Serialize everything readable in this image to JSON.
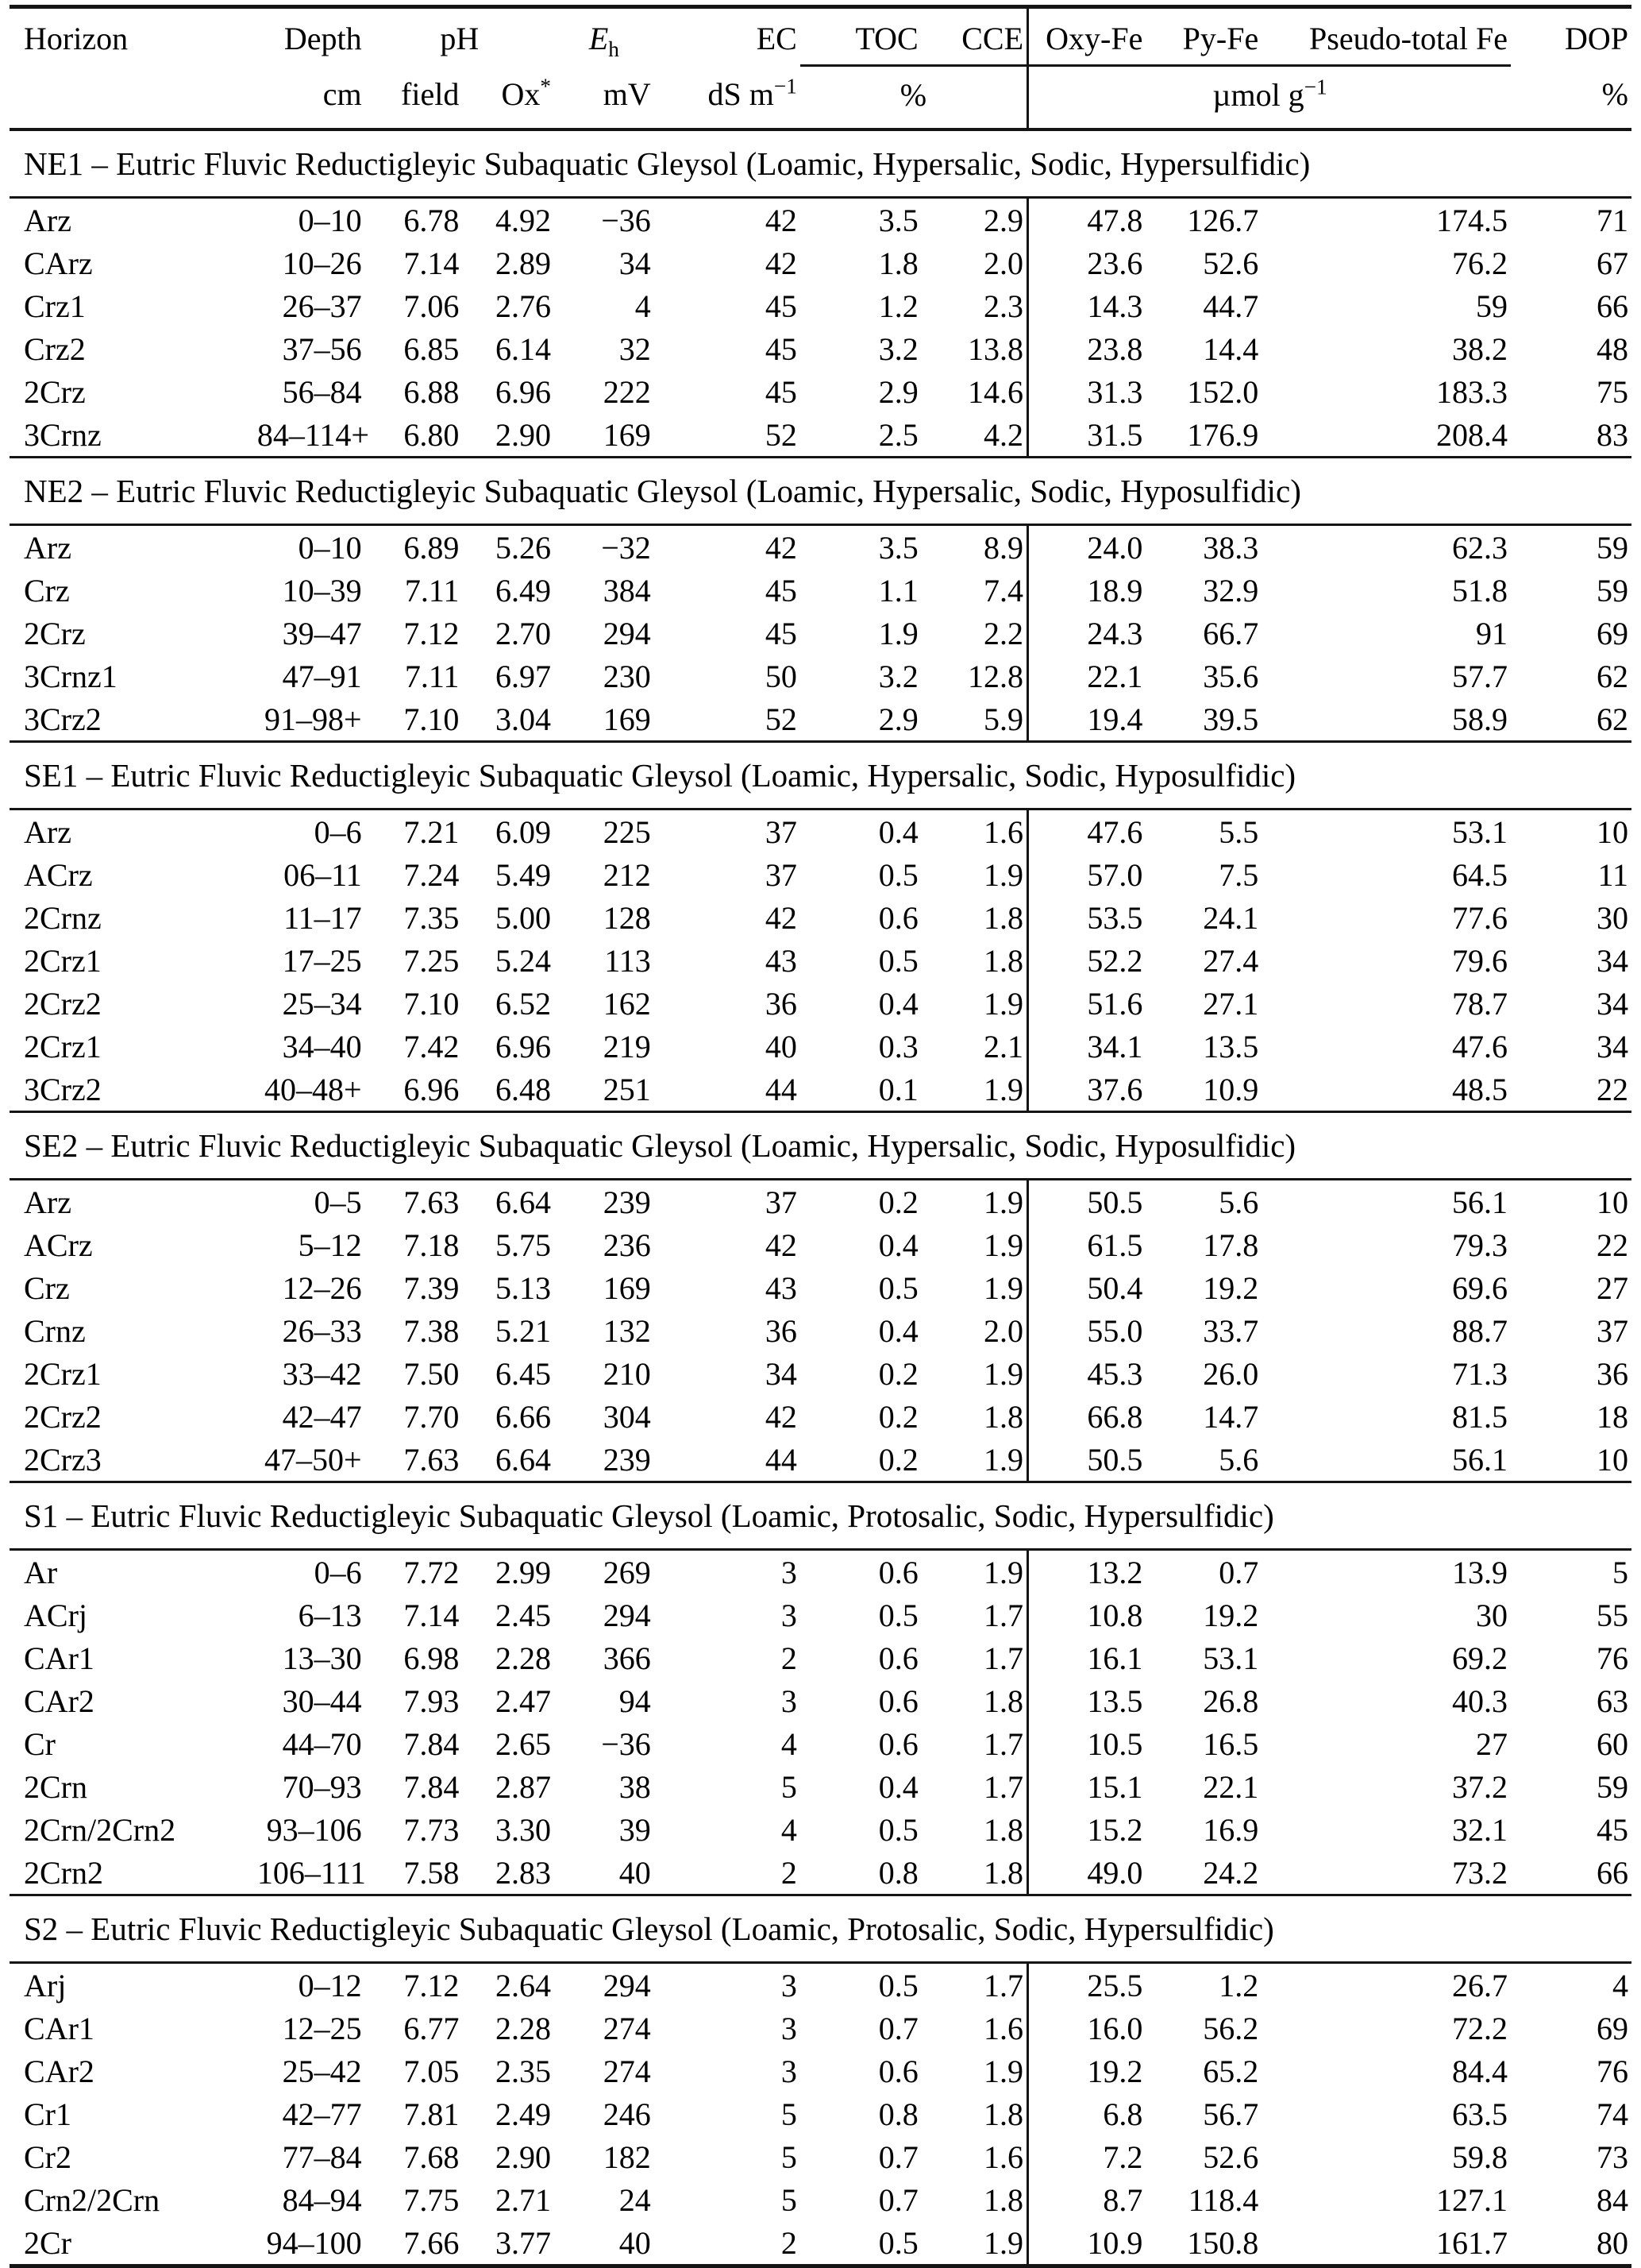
{
  "page": {
    "background": "#ffffff",
    "text_color": "#000000",
    "rule_color": "#141414"
  },
  "table": {
    "header": {
      "horizon": "Horizon",
      "depth": "Depth",
      "depth_unit": "cm",
      "ph": "pH",
      "ph_field": "field",
      "ph_ox_base": "Ox",
      "ph_ox_sup": "*",
      "eh_base": "E",
      "eh_sub": "h",
      "eh_unit": "mV",
      "ec": "EC",
      "ec_unit_base": "dS m",
      "ec_unit_sup": "−1",
      "toc": "TOC",
      "cce": "CCE",
      "toc_cce_unit": "%",
      "oxy_fe": "Oxy-Fe",
      "py_fe": "Py-Fe",
      "pseudo_fe": "Pseudo-total Fe",
      "fe_unit_base": "µmol g",
      "fe_unit_sup": "−1",
      "dop": "DOP",
      "dop_unit": "%"
    },
    "columns": [
      "horizon",
      "depth",
      "ph-field",
      "ph-ox",
      "eh",
      "ec",
      "toc",
      "cce",
      "oxy-fe",
      "py-fe",
      "pseudo-total-fe",
      "dop"
    ],
    "sections": [
      {
        "title": "NE1 – Eutric Fluvic Reductigleyic Subaquatic Gleysol (Loamic, Hypersalic, Sodic, Hypersulfidic)",
        "rows": [
          [
            "Arz",
            "0–10",
            "6.78",
            "4.92",
            "−36",
            "42",
            "3.5",
            "2.9",
            "47.8",
            "126.7",
            "174.5",
            "71"
          ],
          [
            "CArz",
            "10–26",
            "7.14",
            "2.89",
            "34",
            "42",
            "1.8",
            "2.0",
            "23.6",
            "52.6",
            "76.2",
            "67"
          ],
          [
            "Crz1",
            "26–37",
            "7.06",
            "2.76",
            "4",
            "45",
            "1.2",
            "2.3",
            "14.3",
            "44.7",
            "59",
            "66"
          ],
          [
            "Crz2",
            "37–56",
            "6.85",
            "6.14",
            "32",
            "45",
            "3.2",
            "13.8",
            "23.8",
            "14.4",
            "38.2",
            "48"
          ],
          [
            "2Crz",
            "56–84",
            "6.88",
            "6.96",
            "222",
            "45",
            "2.9",
            "14.6",
            "31.3",
            "152.0",
            "183.3",
            "75"
          ],
          [
            "3Crnz",
            "84–114+",
            "6.80",
            "2.90",
            "169",
            "52",
            "2.5",
            "4.2",
            "31.5",
            "176.9",
            "208.4",
            "83"
          ]
        ]
      },
      {
        "title": "NE2 – Eutric Fluvic Reductigleyic Subaquatic Gleysol (Loamic, Hypersalic, Sodic, Hyposulfidic)",
        "rows": [
          [
            "Arz",
            "0–10",
            "6.89",
            "5.26",
            "−32",
            "42",
            "3.5",
            "8.9",
            "24.0",
            "38.3",
            "62.3",
            "59"
          ],
          [
            "Crz",
            "10–39",
            "7.11",
            "6.49",
            "384",
            "45",
            "1.1",
            "7.4",
            "18.9",
            "32.9",
            "51.8",
            "59"
          ],
          [
            "2Crz",
            "39–47",
            "7.12",
            "2.70",
            "294",
            "45",
            "1.9",
            "2.2",
            "24.3",
            "66.7",
            "91",
            "69"
          ],
          [
            "3Crnz1",
            "47–91",
            "7.11",
            "6.97",
            "230",
            "50",
            "3.2",
            "12.8",
            "22.1",
            "35.6",
            "57.7",
            "62"
          ],
          [
            "3Crz2",
            "91–98+",
            "7.10",
            "3.04",
            "169",
            "52",
            "2.9",
            "5.9",
            "19.4",
            "39.5",
            "58.9",
            "62"
          ]
        ]
      },
      {
        "title": "SE1 – Eutric Fluvic Reductigleyic Subaquatic Gleysol (Loamic, Hypersalic, Sodic, Hyposulfidic)",
        "rows": [
          [
            "Arz",
            "0–6",
            "7.21",
            "6.09",
            "225",
            "37",
            "0.4",
            "1.6",
            "47.6",
            "5.5",
            "53.1",
            "10"
          ],
          [
            "ACrz",
            "06–11",
            "7.24",
            "5.49",
            "212",
            "37",
            "0.5",
            "1.9",
            "57.0",
            "7.5",
            "64.5",
            "11"
          ],
          [
            "2Crnz",
            "11–17",
            "7.35",
            "5.00",
            "128",
            "42",
            "0.6",
            "1.8",
            "53.5",
            "24.1",
            "77.6",
            "30"
          ],
          [
            "2Crz1",
            "17–25",
            "7.25",
            "5.24",
            "113",
            "43",
            "0.5",
            "1.8",
            "52.2",
            "27.4",
            "79.6",
            "34"
          ],
          [
            "2Crz2",
            "25–34",
            "7.10",
            "6.52",
            "162",
            "36",
            "0.4",
            "1.9",
            "51.6",
            "27.1",
            "78.7",
            "34"
          ],
          [
            "2Crz1",
            "34–40",
            "7.42",
            "6.96",
            "219",
            "40",
            "0.3",
            "2.1",
            "34.1",
            "13.5",
            "47.6",
            "34"
          ],
          [
            "3Crz2",
            "40–48+",
            "6.96",
            "6.48",
            "251",
            "44",
            "0.1",
            "1.9",
            "37.6",
            "10.9",
            "48.5",
            "22"
          ]
        ]
      },
      {
        "title": "SE2 – Eutric Fluvic Reductigleyic Subaquatic Gleysol (Loamic, Hypersalic, Sodic, Hyposulfidic)",
        "rows": [
          [
            "Arz",
            "0–5",
            "7.63",
            "6.64",
            "239",
            "37",
            "0.2",
            "1.9",
            "50.5",
            "5.6",
            "56.1",
            "10"
          ],
          [
            "ACrz",
            "5–12",
            "7.18",
            "5.75",
            "236",
            "42",
            "0.4",
            "1.9",
            "61.5",
            "17.8",
            "79.3",
            "22"
          ],
          [
            "Crz",
            "12–26",
            "7.39",
            "5.13",
            "169",
            "43",
            "0.5",
            "1.9",
            "50.4",
            "19.2",
            "69.6",
            "27"
          ],
          [
            "Crnz",
            "26–33",
            "7.38",
            "5.21",
            "132",
            "36",
            "0.4",
            "2.0",
            "55.0",
            "33.7",
            "88.7",
            "37"
          ],
          [
            "2Crz1",
            "33–42",
            "7.50",
            "6.45",
            "210",
            "34",
            "0.2",
            "1.9",
            "45.3",
            "26.0",
            "71.3",
            "36"
          ],
          [
            "2Crz2",
            "42–47",
            "7.70",
            "6.66",
            "304",
            "42",
            "0.2",
            "1.8",
            "66.8",
            "14.7",
            "81.5",
            "18"
          ],
          [
            "2Crz3",
            "47–50+",
            "7.63",
            "6.64",
            "239",
            "44",
            "0.2",
            "1.9",
            "50.5",
            "5.6",
            "56.1",
            "10"
          ]
        ]
      },
      {
        "title": "S1 – Eutric Fluvic Reductigleyic Subaquatic Gleysol (Loamic, Protosalic, Sodic, Hypersulfidic)",
        "rows": [
          [
            "Ar",
            "0–6",
            "7.72",
            "2.99",
            "269",
            "3",
            "0.6",
            "1.9",
            "13.2",
            "0.7",
            "13.9",
            "5"
          ],
          [
            "ACrj",
            "6–13",
            "7.14",
            "2.45",
            "294",
            "3",
            "0.5",
            "1.7",
            "10.8",
            "19.2",
            "30",
            "55"
          ],
          [
            "CAr1",
            "13–30",
            "6.98",
            "2.28",
            "366",
            "2",
            "0.6",
            "1.7",
            "16.1",
            "53.1",
            "69.2",
            "76"
          ],
          [
            "CAr2",
            "30–44",
            "7.93",
            "2.47",
            "94",
            "3",
            "0.6",
            "1.8",
            "13.5",
            "26.8",
            "40.3",
            "63"
          ],
          [
            "Cr",
            "44–70",
            "7.84",
            "2.65",
            "−36",
            "4",
            "0.6",
            "1.7",
            "10.5",
            "16.5",
            "27",
            "60"
          ],
          [
            "2Crn",
            "70–93",
            "7.84",
            "2.87",
            "38",
            "5",
            "0.4",
            "1.7",
            "15.1",
            "22.1",
            "37.2",
            "59"
          ],
          [
            "2Crn/2Crn2",
            "93–106",
            "7.73",
            "3.30",
            "39",
            "4",
            "0.5",
            "1.8",
            "15.2",
            "16.9",
            "32.1",
            "45"
          ],
          [
            "2Crn2",
            "106–111",
            "7.58",
            "2.83",
            "40",
            "2",
            "0.8",
            "1.8",
            "49.0",
            "24.2",
            "73.2",
            "66"
          ]
        ]
      },
      {
        "title": "S2 – Eutric Fluvic Reductigleyic Subaquatic Gleysol (Loamic, Protosalic, Sodic, Hypersulfidic)",
        "rows": [
          [
            "Arj",
            "0–12",
            "7.12",
            "2.64",
            "294",
            "3",
            "0.5",
            "1.7",
            "25.5",
            "1.2",
            "26.7",
            "4"
          ],
          [
            "CAr1",
            "12–25",
            "6.77",
            "2.28",
            "274",
            "3",
            "0.7",
            "1.6",
            "16.0",
            "56.2",
            "72.2",
            "69"
          ],
          [
            "CAr2",
            "25–42",
            "7.05",
            "2.35",
            "274",
            "3",
            "0.6",
            "1.9",
            "19.2",
            "65.2",
            "84.4",
            "76"
          ],
          [
            "Cr1",
            "42–77",
            "7.81",
            "2.49",
            "246",
            "5",
            "0.8",
            "1.8",
            "6.8",
            "56.7",
            "63.5",
            "74"
          ],
          [
            "Cr2",
            "77–84",
            "7.68",
            "2.90",
            "182",
            "5",
            "0.7",
            "1.6",
            "7.2",
            "52.6",
            "59.8",
            "73"
          ],
          [
            "Crn2/2Crn",
            "84–94",
            "7.75",
            "2.71",
            "24",
            "5",
            "0.7",
            "1.8",
            "8.7",
            "118.4",
            "127.1",
            "84"
          ],
          [
            "2Cr",
            "94–100",
            "7.66",
            "3.77",
            "40",
            "2",
            "0.5",
            "1.9",
            "10.9",
            "150.8",
            "161.7",
            "80"
          ]
        ]
      }
    ]
  }
}
